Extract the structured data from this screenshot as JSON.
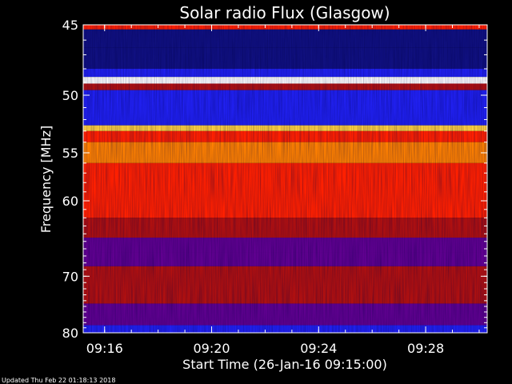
{
  "chart_data": {
    "type": "heatmap",
    "title": "Solar radio Flux (Glasgow)",
    "xlabel": "Start Time (26-Jan-16 09:15:00)",
    "ylabel": "Frequency [MHz]",
    "footer": "Updated Thu Feb 22 01:18:13 2018",
    "x_range_minutes_after_0900": [
      15.2,
      30.3
    ],
    "y_range_mhz": [
      45,
      80
    ],
    "x_ticks": [
      {
        "minute": 16,
        "label": "09:16"
      },
      {
        "minute": 20,
        "label": "09:20"
      },
      {
        "minute": 24,
        "label": "09:24"
      },
      {
        "minute": 28,
        "label": "09:28"
      }
    ],
    "y_ticks": [
      {
        "mhz": 45,
        "label": "45"
      },
      {
        "mhz": 50,
        "label": "50"
      },
      {
        "mhz": 55,
        "label": "55"
      },
      {
        "mhz": 60,
        "label": "60"
      },
      {
        "mhz": 70,
        "label": "70"
      },
      {
        "mhz": 80,
        "label": "80"
      }
    ],
    "colormap": [
      "#000030",
      "#101080",
      "#2020f0",
      "#600090",
      "#b01010",
      "#ff2000",
      "#ff8000",
      "#ffd040",
      "#ffffff"
    ],
    "bands": [
      {
        "from_mhz": 45.0,
        "to_mhz": 45.3,
        "level": 0.6
      },
      {
        "from_mhz": 45.3,
        "to_mhz": 46.5,
        "level": 0.1
      },
      {
        "from_mhz": 46.5,
        "to_mhz": 48.0,
        "level": 0.15
      },
      {
        "from_mhz": 48.0,
        "to_mhz": 48.6,
        "level": 0.3
      },
      {
        "from_mhz": 48.6,
        "to_mhz": 49.1,
        "level": 1.0
      },
      {
        "from_mhz": 49.1,
        "to_mhz": 49.6,
        "level": 0.55
      },
      {
        "from_mhz": 49.6,
        "to_mhz": 52.5,
        "level": 0.2
      },
      {
        "from_mhz": 52.5,
        "to_mhz": 53.0,
        "level": 0.85
      },
      {
        "from_mhz": 53.0,
        "to_mhz": 54.0,
        "level": 0.6
      },
      {
        "from_mhz": 54.0,
        "to_mhz": 56.0,
        "level": 0.78
      },
      {
        "from_mhz": 56.0,
        "to_mhz": 62.0,
        "level": 0.6
      },
      {
        "from_mhz": 62.0,
        "to_mhz": 64.5,
        "level": 0.52
      },
      {
        "from_mhz": 64.5,
        "to_mhz": 66.5,
        "level": 0.42
      },
      {
        "from_mhz": 66.5,
        "to_mhz": 68.5,
        "level": 0.34
      },
      {
        "from_mhz": 68.5,
        "to_mhz": 74.5,
        "level": 0.5
      },
      {
        "from_mhz": 74.5,
        "to_mhz": 78.5,
        "level": 0.35
      },
      {
        "from_mhz": 78.5,
        "to_mhz": 80.0,
        "level": 0.22
      }
    ]
  }
}
